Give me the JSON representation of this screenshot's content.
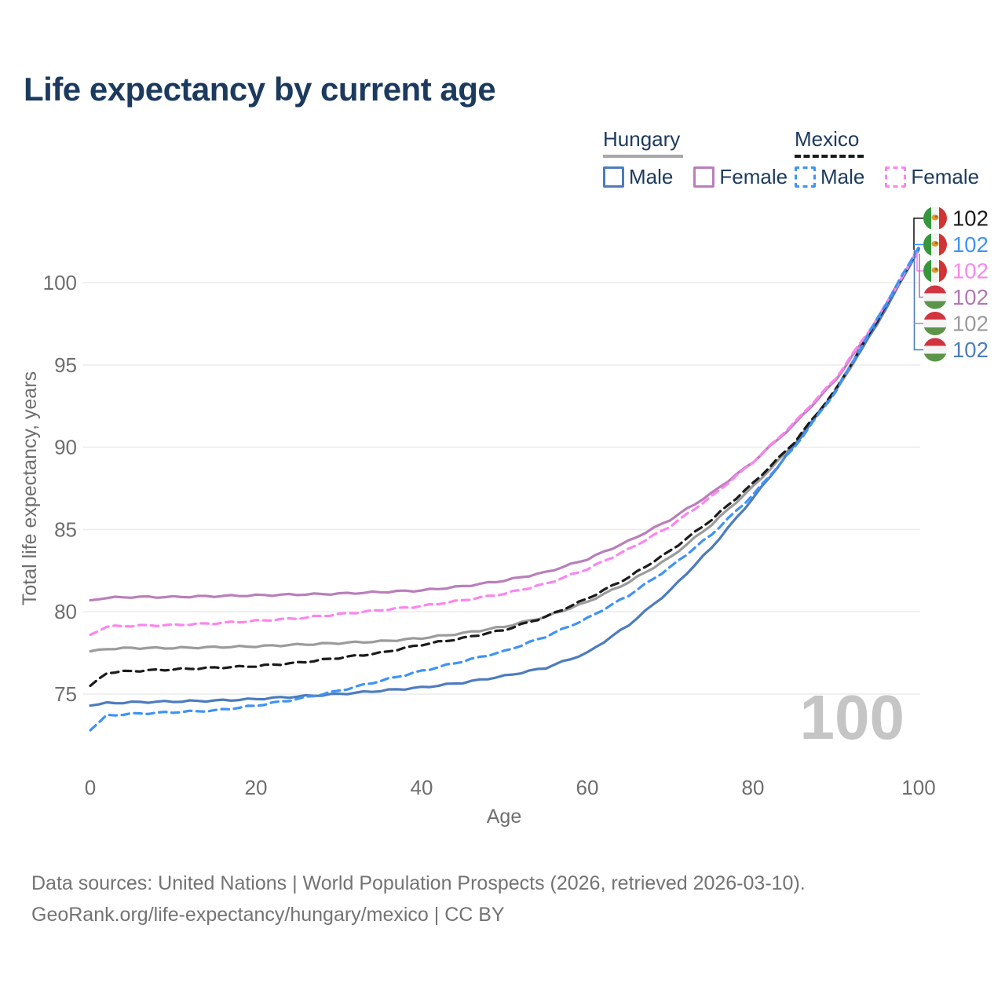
{
  "title": "Life expectancy by current age",
  "watermark_age": "100",
  "colors": {
    "title": "#1c3a5e",
    "axis_text": "#6e6e6e",
    "grid": "#ececec",
    "watermark": "#c5c5c5",
    "footer": "#737373"
  },
  "legend": {
    "groups": [
      {
        "label": "Hungary",
        "line_style": "solid",
        "underline_color": "#a8a8a8",
        "items": [
          {
            "label": "Male",
            "color": "#4d7cbe",
            "dashed": false
          },
          {
            "label": "Female",
            "color": "#b97fba",
            "dashed": false
          }
        ]
      },
      {
        "label": "Mexico",
        "line_style": "dashed",
        "underline_color": "#1b1b1b",
        "items": [
          {
            "label": "Male",
            "color": "#3f93f5",
            "dashed": true
          },
          {
            "label": "Female",
            "color": "#fa86ee",
            "dashed": true
          }
        ]
      }
    ]
  },
  "end_labels": [
    {
      "flag": "mx",
      "value": "102",
      "color": "#1b1b1b",
      "series": "Mexico both sexes"
    },
    {
      "flag": "mx",
      "value": "102",
      "color": "#3f93f5",
      "series": "Mexico male"
    },
    {
      "flag": "mx",
      "value": "102",
      "color": "#fa86ee",
      "series": "Mexico female"
    },
    {
      "flag": "hu",
      "value": "102",
      "color": "#b278b2",
      "series": "Hungary female"
    },
    {
      "flag": "hu",
      "value": "102",
      "color": "#9b9b9b",
      "series": "Hungary both sexes"
    },
    {
      "flag": "hu",
      "value": "102",
      "color": "#4d7cbe",
      "series": "Hungary male"
    }
  ],
  "footer": {
    "line1": "Data sources: United Nations | World Population Prospects (2026, retrieved 2026-03-10).",
    "line2": "GeoRank.org/life-expectancy/hungary/mexico | CC BY"
  },
  "chart_data": {
    "type": "line",
    "title": "Life expectancy by current age",
    "xlabel": "Age",
    "ylabel": "Total life expectancy, years",
    "xlim": [
      0,
      100
    ],
    "ylim": [
      72,
      103
    ],
    "xticks": [
      0,
      20,
      40,
      60,
      80,
      100
    ],
    "yticks": [
      75,
      80,
      85,
      90,
      95,
      100
    ],
    "grid": true,
    "legend_position": "top-right",
    "x": [
      0,
      2,
      5,
      10,
      15,
      20,
      25,
      30,
      35,
      40,
      45,
      50,
      55,
      60,
      65,
      70,
      75,
      80,
      85,
      90,
      95,
      100
    ],
    "series": [
      {
        "name": "Hungary both sexes",
        "country": "Hungary",
        "sex": "both",
        "color": "#9b9b9b",
        "dashed": false,
        "values": [
          77.6,
          77.75,
          77.8,
          77.8,
          77.85,
          77.9,
          78.0,
          78.1,
          78.2,
          78.4,
          78.7,
          79.1,
          79.7,
          80.6,
          81.8,
          83.3,
          85.3,
          87.6,
          90.2,
          93.4,
          97.5,
          102.0
        ]
      },
      {
        "name": "Hungary female",
        "country": "Hungary",
        "sex": "female",
        "color": "#b97fba",
        "dashed": false,
        "values": [
          80.7,
          80.85,
          80.9,
          80.9,
          80.95,
          81.0,
          81.05,
          81.1,
          81.2,
          81.3,
          81.55,
          81.9,
          82.4,
          83.2,
          84.3,
          85.6,
          87.2,
          89.1,
          91.4,
          94.1,
          97.7,
          102.0
        ]
      },
      {
        "name": "Hungary male",
        "country": "Hungary",
        "sex": "male",
        "color": "#4d7cbe",
        "dashed": false,
        "values": [
          74.3,
          74.45,
          74.5,
          74.55,
          74.6,
          74.7,
          74.85,
          75.0,
          75.2,
          75.4,
          75.7,
          76.1,
          76.6,
          77.5,
          79.2,
          81.3,
          83.9,
          86.9,
          90.1,
          93.5,
          97.5,
          102.0
        ]
      },
      {
        "name": "Mexico both sexes",
        "country": "Mexico",
        "sex": "both",
        "color": "#1b1b1b",
        "dashed": true,
        "values": [
          75.5,
          76.3,
          76.4,
          76.5,
          76.6,
          76.7,
          76.9,
          77.2,
          77.5,
          78.0,
          78.4,
          78.9,
          79.7,
          80.8,
          82.1,
          83.7,
          85.6,
          87.8,
          90.3,
          93.5,
          97.7,
          102.1
        ]
      },
      {
        "name": "Mexico female",
        "country": "Mexico",
        "sex": "female",
        "color": "#fa86ee",
        "dashed": true,
        "values": [
          78.6,
          79.1,
          79.15,
          79.2,
          79.3,
          79.45,
          79.6,
          79.85,
          80.1,
          80.35,
          80.7,
          81.1,
          81.7,
          82.6,
          83.8,
          85.2,
          87.0,
          89.1,
          91.5,
          94.2,
          97.8,
          102.05
        ]
      },
      {
        "name": "Mexico male",
        "country": "Mexico",
        "sex": "male",
        "color": "#3f93f5",
        "dashed": true,
        "values": [
          72.8,
          73.7,
          73.8,
          73.9,
          74.0,
          74.3,
          74.7,
          75.2,
          75.8,
          76.4,
          77.0,
          77.6,
          78.5,
          79.6,
          81.0,
          82.7,
          84.7,
          87.1,
          90.0,
          93.4,
          97.8,
          102.15
        ]
      }
    ]
  }
}
